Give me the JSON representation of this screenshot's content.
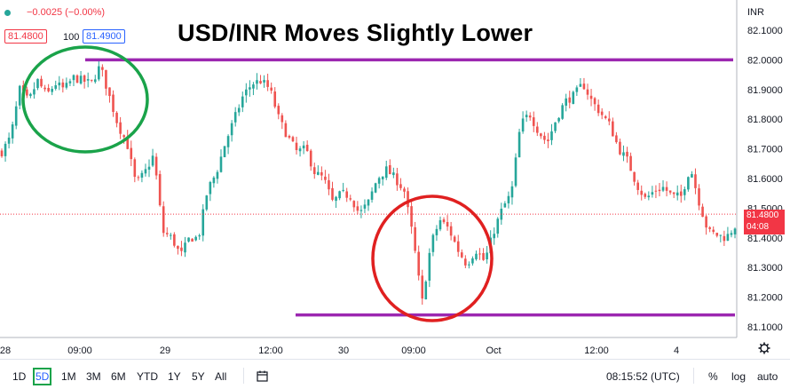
{
  "header": {
    "change": "−0.0025 (−0.00%)",
    "bid": "81.4800",
    "spread": "100",
    "ask": "81.4900",
    "currency": "INR"
  },
  "title": "USD/INR Moves Slightly Lower",
  "price_tag": {
    "price": "81.4800",
    "countdown": "04:08"
  },
  "bottom": {
    "timeframes": [
      "1D",
      "5D",
      "1M",
      "3M",
      "6M",
      "YTD",
      "1Y",
      "5Y",
      "All"
    ],
    "active": "5D",
    "time": "08:15:52 (UTC)",
    "percent": "%",
    "log": "log",
    "auto": "auto"
  },
  "colors": {
    "up": "#26a69a",
    "down": "#ef5350",
    "resistance": "#9c27b0",
    "green_circle": "#1aa34a",
    "red_circle": "#e02020",
    "price_tag": "#f23645"
  },
  "chart_data": {
    "type": "candlestick",
    "title": "USD/INR Moves Slightly Lower",
    "x_tick_labels": [
      "28",
      "09:00",
      "29",
      "12:00",
      "30",
      "09:00",
      "Oct",
      "12:00",
      "4"
    ],
    "y_tick_labels": [
      "82.1000",
      "82.0000",
      "81.9000",
      "81.8000",
      "81.7000",
      "81.6000",
      "81.5000",
      "81.4000",
      "81.3000",
      "81.2000",
      "81.1000"
    ],
    "ylim": [
      81.07,
      82.14
    ],
    "close_path": [
      81.69,
      81.74,
      81.9,
      81.86,
      81.93,
      81.88,
      81.92,
      81.9,
      81.94,
      81.93,
      81.92,
      81.98,
      81.88,
      81.78,
      81.72,
      81.58,
      81.62,
      81.68,
      81.42,
      81.4,
      81.34,
      81.4,
      81.4,
      81.56,
      81.62,
      81.72,
      81.8,
      81.88,
      81.92,
      81.93,
      81.9,
      81.8,
      81.74,
      81.69,
      81.7,
      81.62,
      81.6,
      81.52,
      81.55,
      81.54,
      81.48,
      81.52,
      81.6,
      81.63,
      81.6,
      81.56,
      81.4,
      81.18,
      81.38,
      81.46,
      81.43,
      81.36,
      81.31,
      81.36,
      81.32,
      81.42,
      81.5,
      81.55,
      81.78,
      81.82,
      81.76,
      81.72,
      81.8,
      81.86,
      81.88,
      81.92,
      81.86,
      81.82,
      81.78,
      81.7,
      81.66,
      81.58,
      81.53,
      81.56,
      81.57,
      81.54,
      81.54,
      81.64,
      81.52,
      81.42,
      81.41,
      81.4,
      81.44
    ],
    "last_price": 81.48,
    "horizontal_lines": [
      {
        "y": 82.0,
        "color": "#9c27b0"
      },
      {
        "y": 81.14,
        "color": "#9c27b0"
      }
    ],
    "annotations": [
      {
        "shape": "ellipse",
        "color": "#1aa34a"
      },
      {
        "shape": "ellipse",
        "color": "#e02020"
      }
    ]
  }
}
